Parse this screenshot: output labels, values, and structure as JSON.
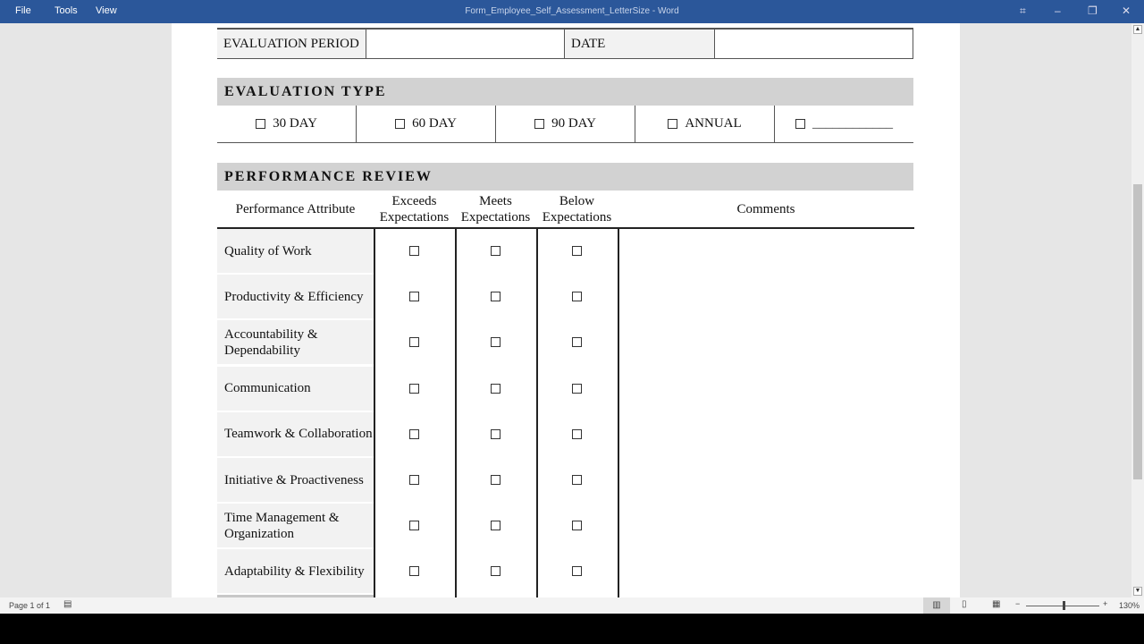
{
  "titlebar": {
    "menu": [
      "File",
      "Tools",
      "View"
    ],
    "title": "Form_Employee_Self_Assessment_LetterSize  -  Word"
  },
  "form": {
    "period_label": "EVALUATION PERIOD",
    "date_label": "DATE",
    "eval_type_header": "EVALUATION TYPE",
    "eval_types": [
      "30 DAY",
      "60 DAY",
      "90 DAY",
      "ANNUAL",
      "____________"
    ],
    "perf_header": "PERFORMANCE REVIEW",
    "columns": [
      "Performance Attribute",
      "Exceeds Expectations",
      "Meets Expectations",
      "Below Expectations",
      "Comments"
    ],
    "attributes": [
      "Quality of Work",
      "Productivity & Efficiency",
      "Accountability & Dependability",
      "Communication",
      "Teamwork & Collaboration",
      "Initiative & Proactiveness",
      "Time Management & Organization",
      "Adaptability & Flexibility"
    ]
  },
  "status": {
    "page": "Page 1 of 1",
    "zoom": "130%"
  }
}
